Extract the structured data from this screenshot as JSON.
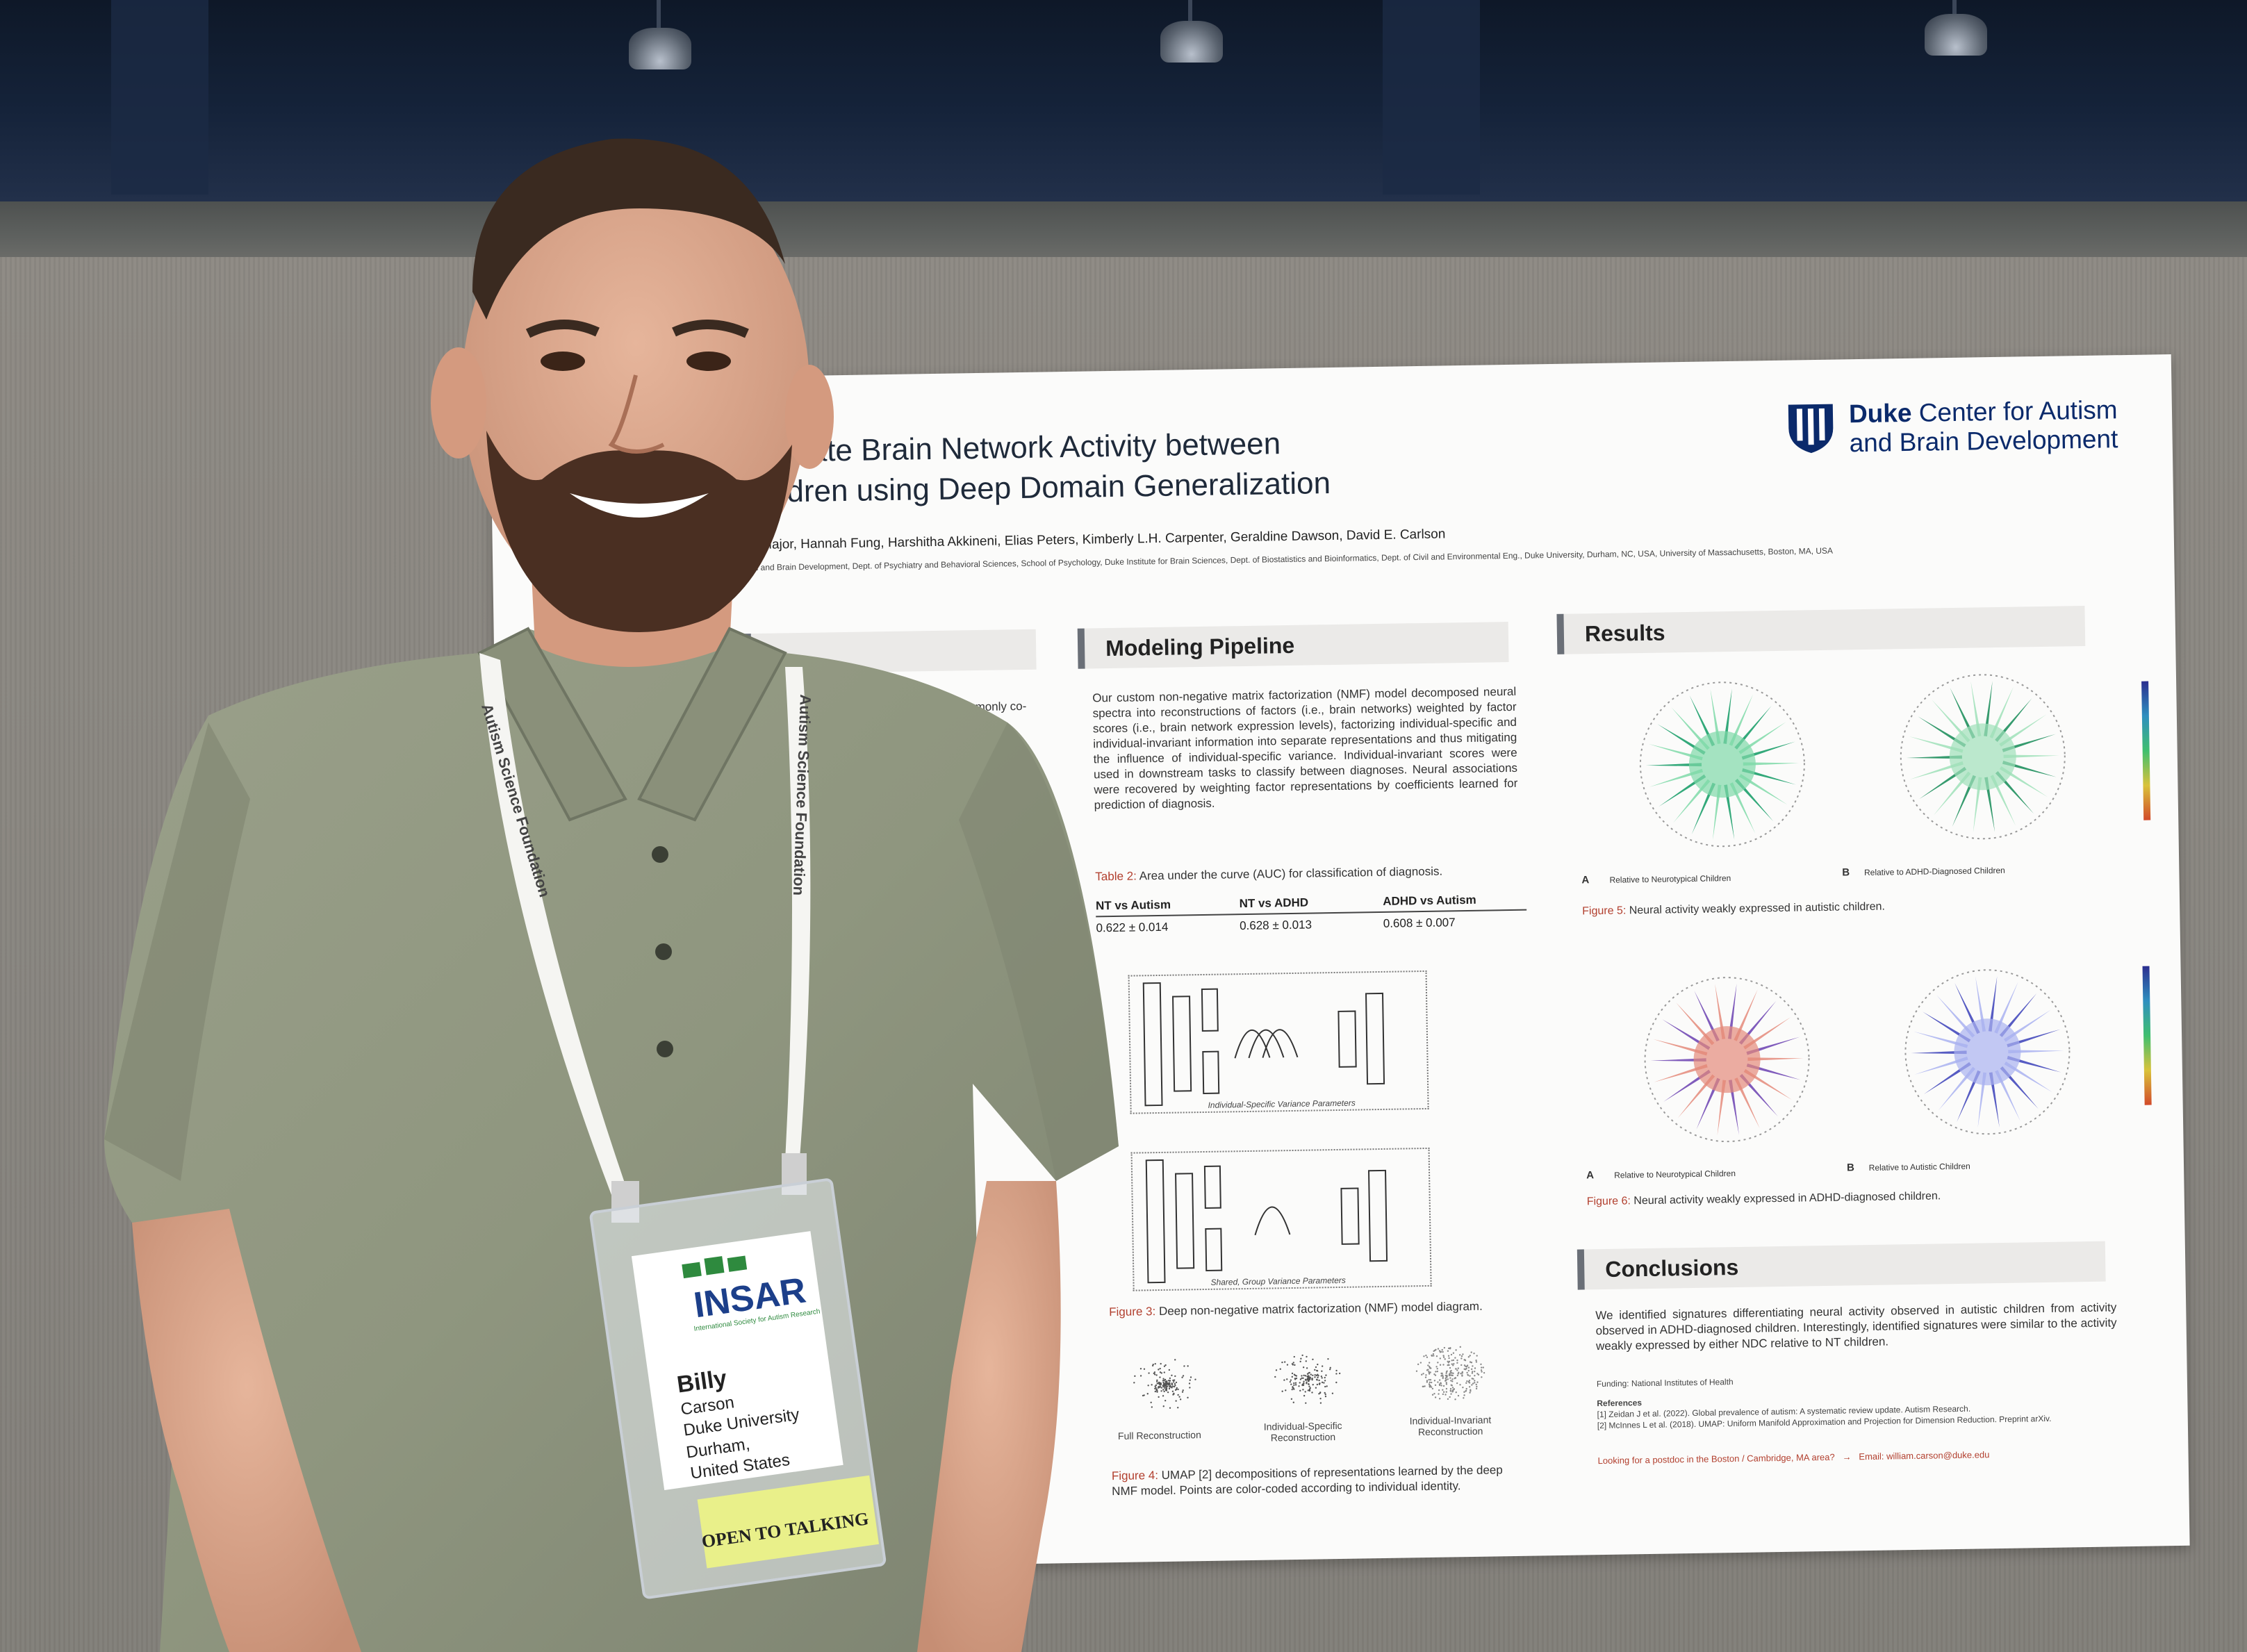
{
  "poster": {
    "title_line1": "ences in Resting State Brain Network Activity between",
    "title_line2": "D-Diagnosed Children using Deep Domain Generalization",
    "org_bold": "Duke",
    "org_line1": "Center for Autism",
    "org_line2": "and Brain Development",
    "authors": "ha Major, Hannah Fung, Harshitha Akkineni, Elias Peters, Kimberly L.H. Carpenter, Geraldine Dawson, David E. Carlson",
    "affiliations": "tism and Brain Development, Dept. of Psychiatry and Behavioral Sciences, School of Psychology, Duke Institute for Brain Sciences, Dept. of Biostatistics and Bioinformatics, Dept. of Civil and Environmental Eng., Duke University, Durham, NC, USA, University of Massachusetts, Boston, MA, USA",
    "intro_fragment": "ADHD) are two commonly co-\ns work leveraged novel\nthe two conditions.",
    "modeling": {
      "heading": "Modeling Pipeline",
      "text": "Our custom non-negative matrix factorization (NMF) model decomposed neural spectra into reconstructions of factors (i.e., brain networks) weighted by factor scores (i.e., brain network expression levels), factorizing individual-specific and individual-invariant information into separate representations and thus mitigating the influence of individual-specific variance. Individual-invariant scores were used in downstream tasks to classify between diagnoses. Neural associations were recovered by weighting factor representations by coefficients learned for prediction of diagnosis.",
      "table_label": "Table 2:",
      "table_caption": "Area under the curve (AUC) for classification of diagnosis.",
      "table_headers": [
        "NT vs Autism",
        "NT vs ADHD",
        "ADHD vs Autism"
      ],
      "table_values": [
        "0.622 ± 0.014",
        "0.628 ± 0.013",
        "0.608 ± 0.007"
      ],
      "diag1_caption": "Individual-Specific Variance Parameters",
      "diag2_caption": "Shared, Group Variance Parameters",
      "fig3_label": "Figure 3:",
      "fig3_caption": "Deep non-negative matrix factorization (NMF) model diagram.",
      "umap_labels": [
        "Full Reconstruction",
        "Individual-Specific\nReconstruction",
        "Individual-Invariant\nReconstruction"
      ],
      "fig4_label": "Figure 4:",
      "fig4_caption": "UMAP [2] decompositions of representations learned by the deep NMF model. Points are color-coded according to individual identity."
    },
    "results": {
      "heading": "Results",
      "fig5_a": "A",
      "fig5_a_label": "Relative to Neurotypical Children",
      "fig5_b": "B",
      "fig5_b_label": "Relative to ADHD-Diagnosed Children",
      "fig5_label": "Figure 5:",
      "fig5_caption": "Neural activity weakly expressed in autistic children.",
      "fig6_a": "A",
      "fig6_a_label": "Relative to Neurotypical Children",
      "fig6_b": "B",
      "fig6_b_label": "Relative to Autistic Children",
      "fig6_label": "Figure 6:",
      "fig6_caption": "Neural activity weakly expressed in ADHD-diagnosed children."
    },
    "conclusions": {
      "heading": "Conclusions",
      "text": "We identified signatures differentiating neural activity observed in autistic children from activity observed in ADHD-diagnosed children. Interestingly, identified signatures were similar to the activity weakly expressed by either NDC relative to NT children.",
      "funding": "Funding: National Institutes of Health",
      "references": "References",
      "ref1": "[1] Zeidan J et al. (2022). Global prevalence of autism: A systematic review update. Autism Research.",
      "ref2": "[2] McInnes L et al. (2018). UMAP: Uniform Manifold Approximation and Projection for Dimension Reduction. Preprint arXiv.",
      "postdoc": "Looking for a postdoc in the Boston / Cambridge, MA area?",
      "email": "Email: william.carson@duke.edu"
    }
  },
  "lanyard": {
    "text": "Autism Science Foundation"
  },
  "badge": {
    "org": "INSAR",
    "org_sub": "International Society for Autism Research",
    "first_name": "Billy",
    "last_name": "Carson",
    "line1": "Duke University",
    "line2": "Durham,",
    "line3": "United States",
    "sticker": "OPEN TO TALKING"
  },
  "colors": {
    "poster_accent": "#b2402f",
    "duke_blue": "#0b2a6b",
    "shirt": "#8f967f",
    "sticker": "#e9f08a"
  }
}
